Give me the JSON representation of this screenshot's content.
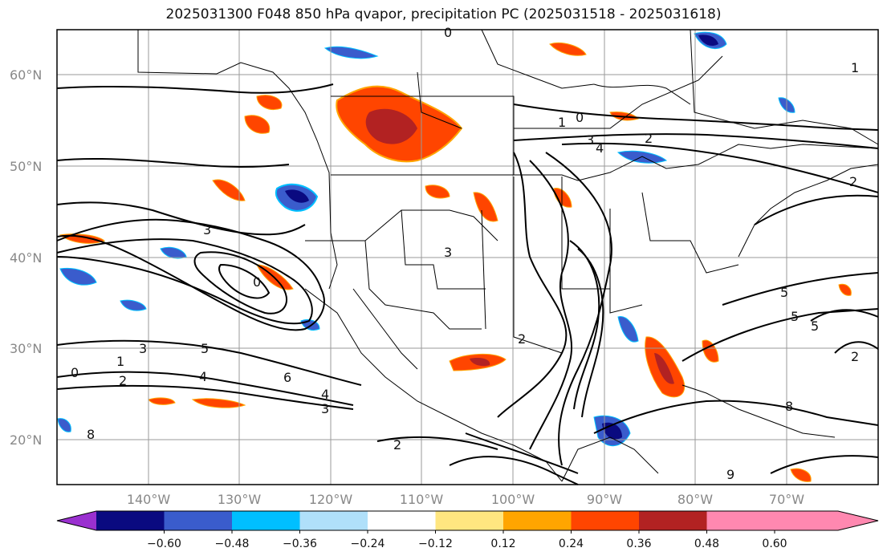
{
  "title": "2025031300 F048 850 hPa qvapor, precipitation PC (2025031518 - 2025031618)",
  "lat_ticks": [
    "60°N",
    "50°N",
    "40°N",
    "30°N",
    "20°N"
  ],
  "lon_ticks": [
    "140°W",
    "130°W",
    "120°W",
    "110°W",
    "100°W",
    "90°W",
    "80°W",
    "70°W"
  ],
  "colorbar": {
    "labels": [
      "−0.60",
      "−0.48",
      "−0.36",
      "−0.24",
      "−0.12",
      "0.12",
      "0.24",
      "0.36",
      "0.48",
      "0.60"
    ],
    "colors": [
      "#9a30d0",
      "#0a0a80",
      "#3a5ccc",
      "#00bfff",
      "#b0e0fa",
      "#ffffff",
      "#ffe680",
      "#ffa500",
      "#ff4500",
      "#b22222",
      "#ff88b0",
      "#ff88b0"
    ]
  },
  "contour_labels": [
    "0",
    "1",
    "3",
    "2",
    "4",
    "2",
    "1",
    "3",
    "0",
    "0",
    "2",
    "3",
    "1",
    "0",
    "2",
    "2",
    "3",
    "4",
    "5",
    "6",
    "4",
    "3",
    "2",
    "8",
    "5",
    "5",
    "9",
    "8",
    "5"
  ]
}
